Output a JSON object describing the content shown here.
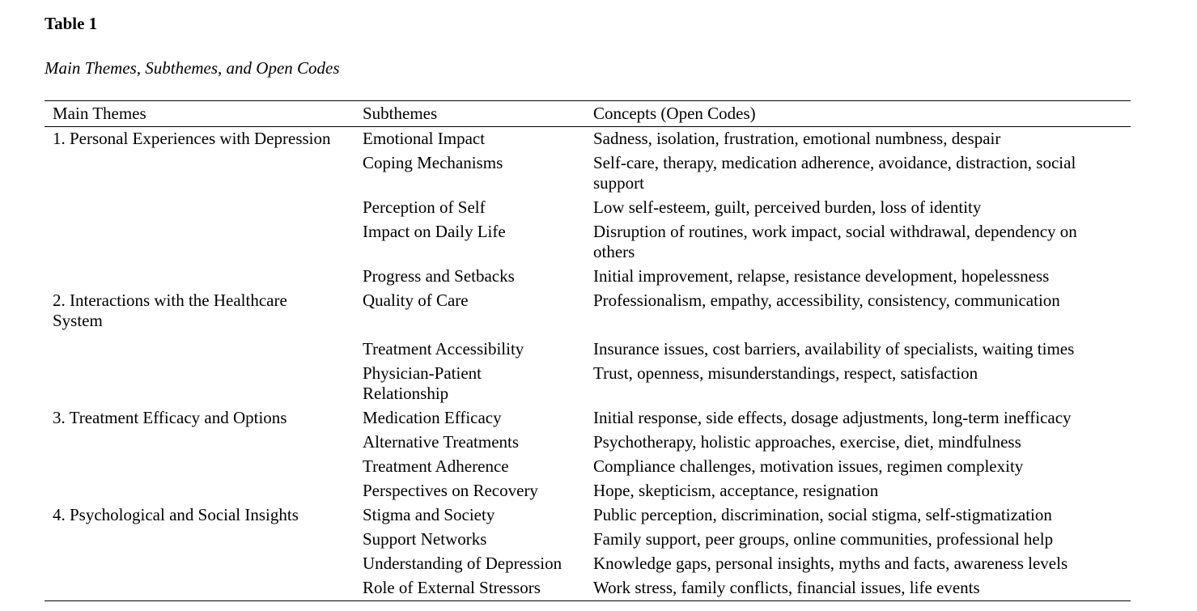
{
  "colors": {
    "text": "#000000",
    "background": "#ffffff",
    "rule": "#000000"
  },
  "document": {
    "table_label": "Table 1",
    "table_caption": "Main Themes, Subthemes, and Open Codes"
  },
  "table": {
    "columns": [
      "Main Themes",
      "Subthemes",
      "Concepts (Open Codes)"
    ],
    "themes": [
      {
        "label": "1. Personal Experiences with Depression",
        "rows": [
          {
            "subtheme": "Emotional Impact",
            "concepts": "Sadness, isolation, frustration, emotional numbness, despair"
          },
          {
            "subtheme": "Coping Mechanisms",
            "concepts": "Self-care, therapy, medication adherence, avoidance, distraction, social\nsupport"
          },
          {
            "subtheme": "Perception of Self",
            "concepts": "Low self-esteem, guilt, perceived burden, loss of identity"
          },
          {
            "subtheme": "Impact on Daily Life",
            "concepts": "Disruption of routines, work impact, social withdrawal, dependency on\nothers"
          },
          {
            "subtheme": "Progress and Setbacks",
            "concepts": "Initial improvement, relapse, resistance development, hopelessness"
          }
        ]
      },
      {
        "label": "2. Interactions with the Healthcare\nSystem",
        "rows": [
          {
            "subtheme": "Quality of Care",
            "concepts": "Professionalism, empathy, accessibility, consistency, communication"
          },
          {
            "subtheme": "Treatment Accessibility",
            "concepts": "Insurance issues, cost barriers, availability of specialists, waiting times"
          },
          {
            "subtheme": "Physician-Patient\nRelationship",
            "concepts": "Trust, openness, misunderstandings, respect, satisfaction"
          }
        ]
      },
      {
        "label": "3. Treatment Efficacy and Options",
        "rows": [
          {
            "subtheme": "Medication Efficacy",
            "concepts": "Initial response, side effects, dosage adjustments, long-term inefficacy"
          },
          {
            "subtheme": "Alternative Treatments",
            "concepts": "Psychotherapy, holistic approaches, exercise, diet, mindfulness"
          },
          {
            "subtheme": "Treatment Adherence",
            "concepts": "Compliance challenges, motivation issues, regimen complexity"
          },
          {
            "subtheme": "Perspectives on Recovery",
            "concepts": "Hope, skepticism, acceptance, resignation"
          }
        ]
      },
      {
        "label": "4. Psychological and Social Insights",
        "rows": [
          {
            "subtheme": "Stigma and Society",
            "concepts": "Public perception, discrimination, social stigma, self-stigmatization"
          },
          {
            "subtheme": "Support Networks",
            "concepts": "Family support, peer groups, online communities, professional help"
          },
          {
            "subtheme": "Understanding of Depression",
            "concepts": "Knowledge gaps, personal insights, myths and facts, awareness levels"
          },
          {
            "subtheme": "Role of External Stressors",
            "concepts": "Work stress, family conflicts, financial issues, life events"
          }
        ]
      }
    ]
  }
}
